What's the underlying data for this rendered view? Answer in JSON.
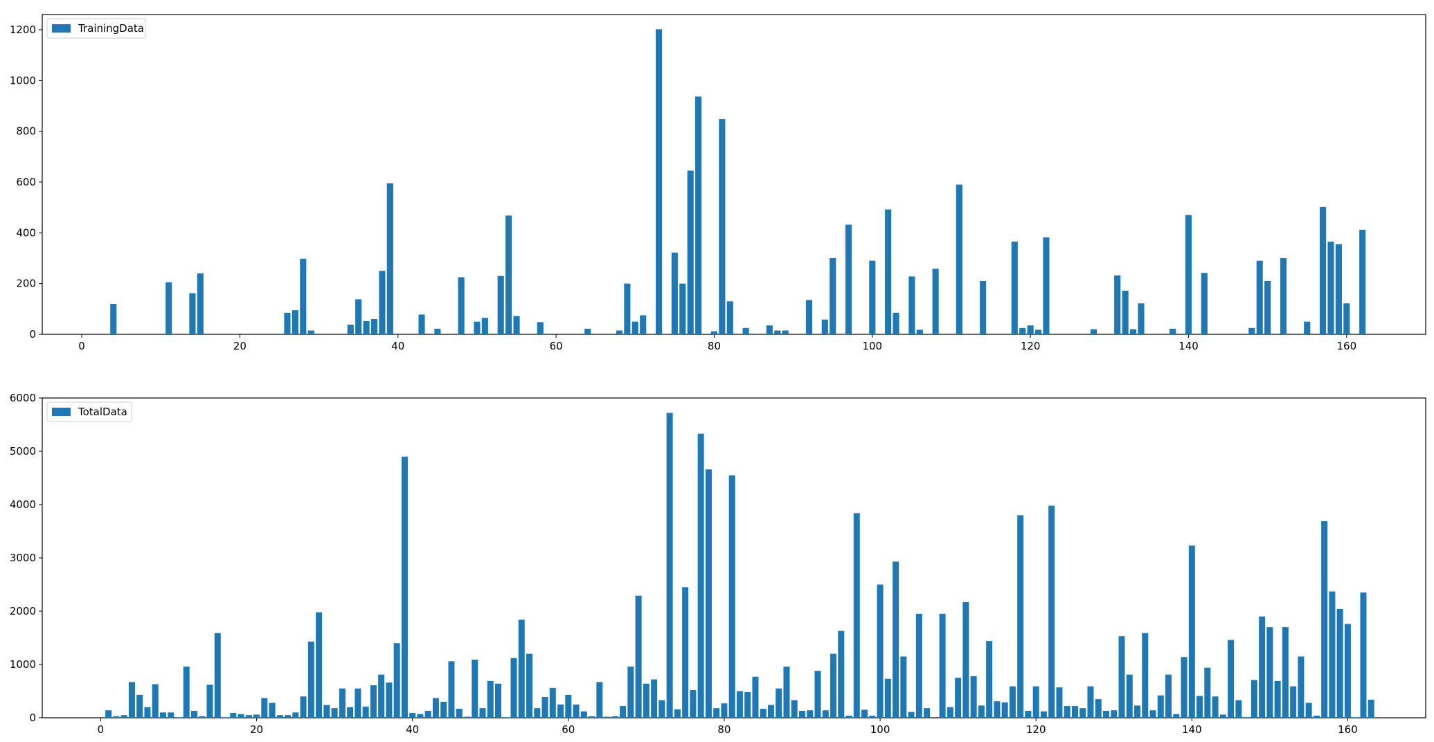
{
  "figure": {
    "background": "#ffffff",
    "bar_color": "#1f77b4"
  },
  "chart_data": [
    {
      "type": "bar",
      "legend": [
        "TrainingData"
      ],
      "legend_location": "upper-left",
      "xlim": [
        -5,
        170
      ],
      "ylim": [
        0,
        1260
      ],
      "xticks": [
        0,
        20,
        40,
        60,
        80,
        100,
        120,
        140,
        160
      ],
      "yticks": [
        0,
        200,
        400,
        600,
        800,
        1000,
        1200
      ],
      "xtick_labels": [
        "0",
        "20",
        "40",
        "60",
        "80",
        "100",
        "120",
        "140",
        "160"
      ],
      "ytick_labels": [
        "0",
        "200",
        "400",
        "600",
        "800",
        "1000",
        "1200"
      ],
      "series": [
        {
          "name": "TrainingData",
          "color": "#1f77b4",
          "x": [
            4,
            11,
            14,
            15,
            26,
            27,
            28,
            29,
            34,
            35,
            36,
            37,
            38,
            39,
            43,
            45,
            48,
            50,
            51,
            53,
            54,
            55,
            58,
            64,
            68,
            69,
            70,
            71,
            73,
            75,
            76,
            77,
            78,
            80,
            81,
            82,
            84,
            87,
            88,
            89,
            92,
            94,
            95,
            97,
            100,
            102,
            103,
            105,
            106,
            108,
            111,
            114,
            118,
            119,
            120,
            121,
            122,
            128,
            131,
            132,
            133,
            134,
            138,
            140,
            142,
            148,
            149,
            150,
            152,
            155,
            157,
            158,
            159,
            160,
            162
          ],
          "values": [
            120,
            205,
            162,
            240,
            85,
            95,
            298,
            15,
            38,
            138,
            52,
            60,
            250,
            595,
            78,
            22,
            225,
            50,
            65,
            230,
            468,
            72,
            48,
            22,
            15,
            200,
            50,
            75,
            1202,
            322,
            200,
            645,
            937,
            12,
            848,
            130,
            25,
            35,
            15,
            15,
            135,
            58,
            300,
            432,
            290,
            492,
            85,
            228,
            18,
            258,
            590,
            210,
            365,
            25,
            35,
            18,
            382,
            20,
            232,
            172,
            20,
            122,
            22,
            470,
            242,
            25,
            290,
            210,
            300,
            50,
            502,
            365,
            355,
            122,
            412
          ]
        }
      ]
    },
    {
      "type": "bar",
      "legend": [
        "TotalData"
      ],
      "legend_location": "upper-left",
      "xlim": [
        -7.5,
        170
      ],
      "ylim": [
        0,
        6000
      ],
      "xticks": [
        0,
        20,
        40,
        60,
        80,
        100,
        120,
        140,
        160
      ],
      "yticks": [
        0,
        1000,
        2000,
        3000,
        4000,
        5000,
        6000
      ],
      "xtick_labels": [
        "0",
        "20",
        "40",
        "60",
        "80",
        "100",
        "120",
        "140",
        "160"
      ],
      "ytick_labels": [
        "0",
        "1000",
        "2000",
        "3000",
        "4000",
        "5000",
        "6000"
      ],
      "series": [
        {
          "name": "TotalData",
          "color": "#1f77b4",
          "x": [
            0,
            1,
            2,
            3,
            4,
            5,
            6,
            7,
            8,
            9,
            10,
            11,
            12,
            13,
            14,
            15,
            16,
            17,
            18,
            19,
            20,
            21,
            22,
            23,
            24,
            25,
            26,
            27,
            28,
            29,
            30,
            31,
            32,
            33,
            34,
            35,
            36,
            37,
            38,
            39,
            40,
            41,
            42,
            43,
            44,
            45,
            46,
            47,
            48,
            49,
            50,
            51,
            52,
            53,
            54,
            55,
            56,
            57,
            58,
            59,
            60,
            61,
            62,
            63,
            64,
            65,
            66,
            67,
            68,
            69,
            70,
            71,
            72,
            73,
            74,
            75,
            76,
            77,
            78,
            79,
            80,
            81,
            82,
            83,
            84,
            85,
            86,
            87,
            88,
            89,
            90,
            91,
            92,
            93,
            94,
            95,
            96,
            97,
            98,
            99,
            100,
            101,
            102,
            103,
            104,
            105,
            106,
            107,
            108,
            109,
            110,
            111,
            112,
            113,
            114,
            115,
            116,
            117,
            118,
            119,
            120,
            121,
            122,
            123,
            124,
            125,
            126,
            127,
            128,
            129,
            130,
            131,
            132,
            133,
            134,
            135,
            136,
            137,
            138,
            139,
            140,
            141,
            142,
            143,
            144,
            145,
            146,
            147,
            148,
            149,
            150,
            151,
            152,
            153,
            154,
            155,
            156,
            157,
            158,
            159,
            160,
            161,
            162,
            163
          ],
          "values": [
            0,
            140,
            30,
            50,
            670,
            430,
            200,
            630,
            100,
            100,
            10,
            960,
            130,
            30,
            620,
            1590,
            10,
            90,
            70,
            50,
            60,
            370,
            280,
            50,
            50,
            100,
            400,
            1430,
            1980,
            240,
            180,
            550,
            200,
            550,
            210,
            610,
            810,
            660,
            1400,
            4900,
            90,
            70,
            130,
            370,
            300,
            1060,
            170,
            20,
            1090,
            180,
            690,
            640,
            10,
            1120,
            1840,
            1200,
            180,
            390,
            560,
            250,
            430,
            250,
            120,
            30,
            670,
            20,
            30,
            220,
            960,
            2290,
            640,
            720,
            330,
            5720,
            160,
            2450,
            520,
            5330,
            4660,
            180,
            270,
            4550,
            500,
            480,
            770,
            170,
            240,
            550,
            960,
            330,
            130,
            140,
            880,
            140,
            1200,
            1630,
            40,
            3840,
            150,
            40,
            2500,
            730,
            2930,
            1150,
            110,
            1950,
            180,
            0,
            1950,
            200,
            750,
            2170,
            780,
            230,
            1440,
            310,
            290,
            590,
            3800,
            130,
            590,
            120,
            3980,
            570,
            220,
            220,
            180,
            590,
            350,
            130,
            140,
            1530,
            810,
            230,
            1590,
            140,
            420,
            810,
            70,
            1140,
            3230,
            410,
            940,
            400,
            60,
            1460,
            330,
            10,
            710,
            1900,
            1700,
            690,
            1700,
            590,
            1150,
            280,
            40,
            3690,
            2370,
            2040,
            1760,
            10,
            2350,
            340
          ]
        }
      ]
    }
  ]
}
